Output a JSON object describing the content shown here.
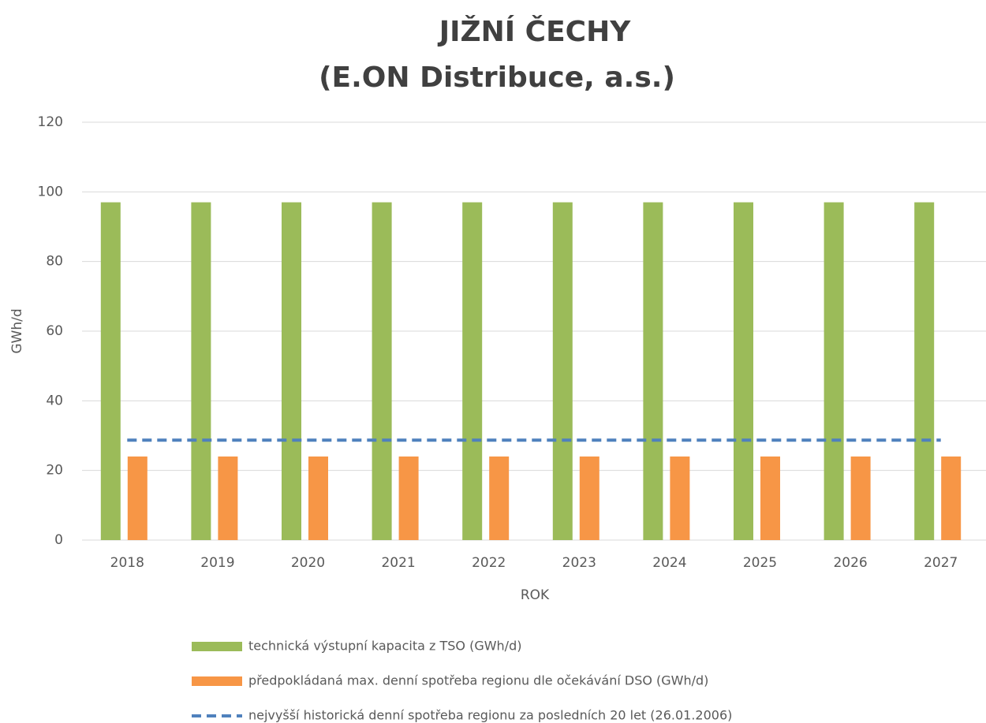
{
  "chart_data": {
    "type": "bar",
    "title": "JIŽNÍ ČECHY",
    "subtitle": "(E.ON Distribuce, a.s.)",
    "xlabel": "ROK",
    "ylabel": "GWh/d",
    "categories": [
      "2018",
      "2019",
      "2020",
      "2021",
      "2022",
      "2023",
      "2024",
      "2025",
      "2026",
      "2027"
    ],
    "series": [
      {
        "name": "technická výstupní kapacita z TSO (GWh/d)",
        "color": "#9bbb59",
        "values": [
          97,
          97,
          97,
          97,
          97,
          97,
          97,
          97,
          97,
          97
        ]
      },
      {
        "name": "předpokládaná max. denní spotřeba regionu dle očekávání DSO (GWh/d)",
        "color": "#f79646",
        "values": [
          24,
          24,
          24,
          24,
          24,
          24,
          24,
          24,
          24,
          24
        ]
      },
      {
        "name": "nejvyšší historická denní spotřeba regionu za posledních 20 let (26.01.2006)",
        "color": "#4f81bd",
        "type": "line",
        "dashed": true,
        "values": [
          28.7,
          28.7,
          28.7,
          28.7,
          28.7,
          28.7,
          28.7,
          28.7,
          28.7,
          28.7
        ]
      }
    ],
    "ylim": [
      0,
      120
    ],
    "yticks": [
      0,
      20,
      40,
      60,
      80,
      100,
      120
    ],
    "grid": true,
    "legend": "bottom"
  }
}
